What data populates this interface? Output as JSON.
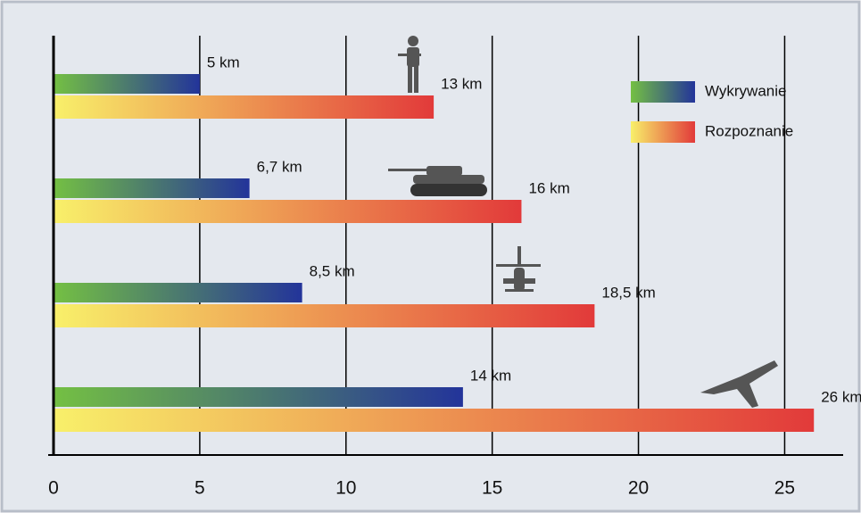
{
  "chart_data": {
    "type": "bar",
    "orientation": "horizontal",
    "categories": [
      null,
      null,
      null,
      null
    ],
    "series": [
      {
        "name": "Wykrywanie",
        "color": [
          "#74c043",
          "#23349a"
        ],
        "values": [
          5,
          6.7,
          8.5,
          14
        ],
        "value_labels": [
          "5 km",
          "6,7 km",
          "8,5 km",
          "14 km"
        ]
      },
      {
        "name": "Rozpoznanie",
        "color": [
          "#f8f06a",
          "#e23a3a"
        ],
        "values": [
          13,
          16,
          18.5,
          26
        ],
        "value_labels": [
          "13 km",
          "16 km",
          "18,5 km",
          "26 km"
        ]
      }
    ],
    "xlim": [
      0,
      27
    ],
    "xticks": [
      0,
      5,
      10,
      15,
      20,
      25
    ],
    "grid": true,
    "legend": "top-right"
  }
}
